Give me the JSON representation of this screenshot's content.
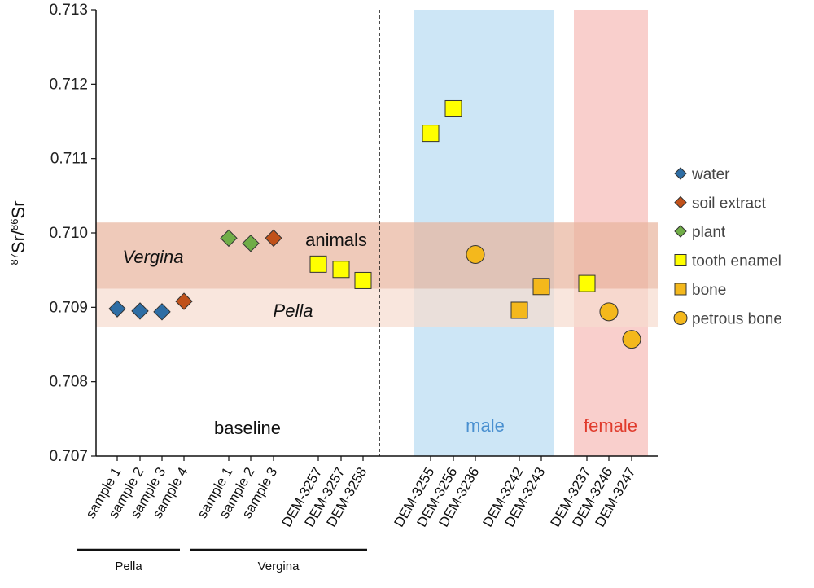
{
  "chart_data": {
    "type": "scatter",
    "ylabel": "87Sr/86Sr",
    "ylabel_parts": {
      "sup1": "87",
      "mid": "Sr/",
      "sup2": "86",
      "end": "Sr"
    },
    "ylim": [
      0.707,
      0.713
    ],
    "yticks": [
      "0.707",
      "0.708",
      "0.709",
      "0.710",
      "0.711",
      "0.712",
      "0.713"
    ],
    "categories": [
      "sample 1",
      "sample 2",
      "sample 3",
      "sample 4",
      "sample 1",
      "sample 2",
      "sample 3",
      "DEM-3257",
      "DEM-3257",
      "DEM-3258",
      "DEM-3255",
      "DEM-3256",
      "DEM-3236",
      "DEM-3242",
      "DEM-3243",
      "DEM-3237",
      "DEM-3246",
      "DEM-3247"
    ],
    "series": [
      {
        "name": "water",
        "marker": "diamond",
        "color": "#2e6da4",
        "points": [
          {
            "cat": 0,
            "y": 0.70898
          },
          {
            "cat": 1,
            "y": 0.70895
          },
          {
            "cat": 2,
            "y": 0.70894
          }
        ]
      },
      {
        "name": "soil extract",
        "marker": "diamond",
        "color": "#c0511a",
        "points": [
          {
            "cat": 3,
            "y": 0.70908
          },
          {
            "cat": 6,
            "y": 0.70993
          }
        ]
      },
      {
        "name": "plant",
        "marker": "diamond",
        "color": "#70ad47",
        "points": [
          {
            "cat": 4,
            "y": 0.70993
          },
          {
            "cat": 5,
            "y": 0.70986
          }
        ]
      },
      {
        "name": "tooth enamel",
        "marker": "square",
        "color": "#ffff00",
        "points": [
          {
            "cat": 7,
            "y": 0.70958
          },
          {
            "cat": 8,
            "y": 0.70951
          },
          {
            "cat": 9,
            "y": 0.70936
          },
          {
            "cat": 10,
            "y": 0.71134
          },
          {
            "cat": 11,
            "y": 0.71167
          },
          {
            "cat": 15,
            "y": 0.70932
          }
        ]
      },
      {
        "name": "bone",
        "marker": "square",
        "color": "#f4b81c",
        "points": [
          {
            "cat": 13,
            "y": 0.70896
          },
          {
            "cat": 14,
            "y": 0.70928
          }
        ]
      },
      {
        "name": "petrous bone",
        "marker": "circle",
        "color": "#f4b81c",
        "points": [
          {
            "cat": 12,
            "y": 0.70971
          },
          {
            "cat": 16,
            "y": 0.70894
          },
          {
            "cat": 17,
            "y": 0.70857
          }
        ]
      }
    ],
    "bands": [
      {
        "name": "Vergina",
        "y0": 0.70925,
        "y1": 0.71014,
        "color": "#e8b49c"
      },
      {
        "name": "Pella",
        "y0": 0.70874,
        "y1": 0.70925,
        "color": "#f7dccf"
      }
    ],
    "sex_regions": [
      {
        "name": "male",
        "from_cat": 10,
        "to_cat": 14,
        "color": "#cde6f6",
        "text_color": "#4a90d0"
      },
      {
        "name": "female",
        "from_cat": 15,
        "to_cat": 17,
        "color": "#f9cfcc",
        "text_color": "#e03b2c"
      }
    ],
    "annotations": {
      "vergina": "Vergina",
      "pella": "Pella",
      "animals": "animals",
      "baseline": "baseline",
      "male": "male",
      "female": "female"
    },
    "groups": [
      {
        "label": "Pella",
        "from_cat": 0,
        "to_cat": 3
      },
      {
        "label": "Vergina",
        "from_cat": 4,
        "to_cat": 9
      }
    ],
    "legend_position": "right"
  }
}
